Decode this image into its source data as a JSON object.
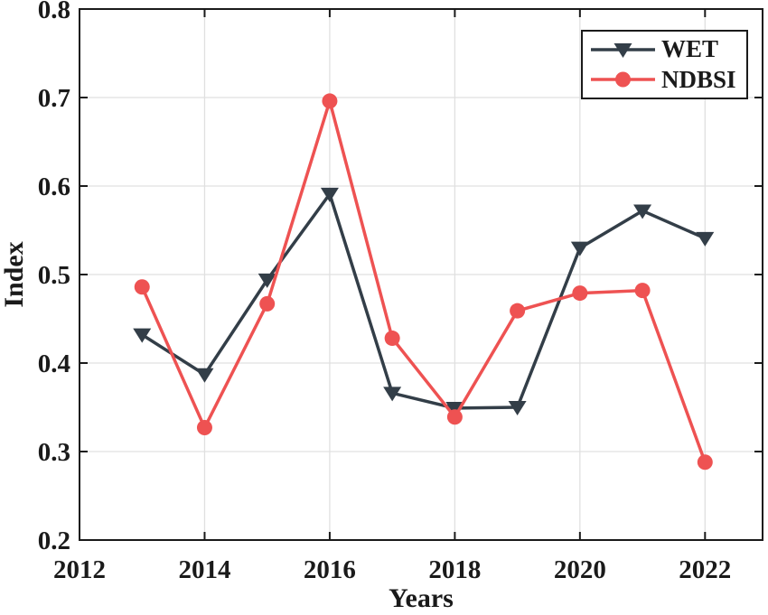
{
  "chart_data": {
    "type": "line",
    "title": "",
    "xlabel": "Years",
    "ylabel": "Index",
    "xlim": [
      2012,
      2022.92
    ],
    "ylim": [
      0.2,
      0.8
    ],
    "x": [
      2013,
      2014,
      2015,
      2016,
      2017,
      2018,
      2019,
      2020,
      2021,
      2022
    ],
    "xticks": [
      2012,
      2014,
      2016,
      2018,
      2020,
      2022
    ],
    "yticks": [
      0.2,
      0.3,
      0.4,
      0.5,
      0.6,
      0.7,
      0.8
    ],
    "grid": true,
    "legend_position": "top-right",
    "axis_color": "#1a1a1a",
    "grid_color": "#e0e0e0",
    "series": [
      {
        "name": "WET",
        "color": "#333e48",
        "marker": "triangle-down",
        "values": [
          0.432,
          0.387,
          0.494,
          0.591,
          0.366,
          0.349,
          0.35,
          0.53,
          0.572,
          0.541
        ]
      },
      {
        "name": "NDBSI",
        "color": "#ee5252",
        "marker": "circle",
        "values": [
          0.486,
          0.327,
          0.467,
          0.696,
          0.428,
          0.339,
          0.459,
          0.479,
          0.482,
          0.288
        ]
      }
    ]
  }
}
